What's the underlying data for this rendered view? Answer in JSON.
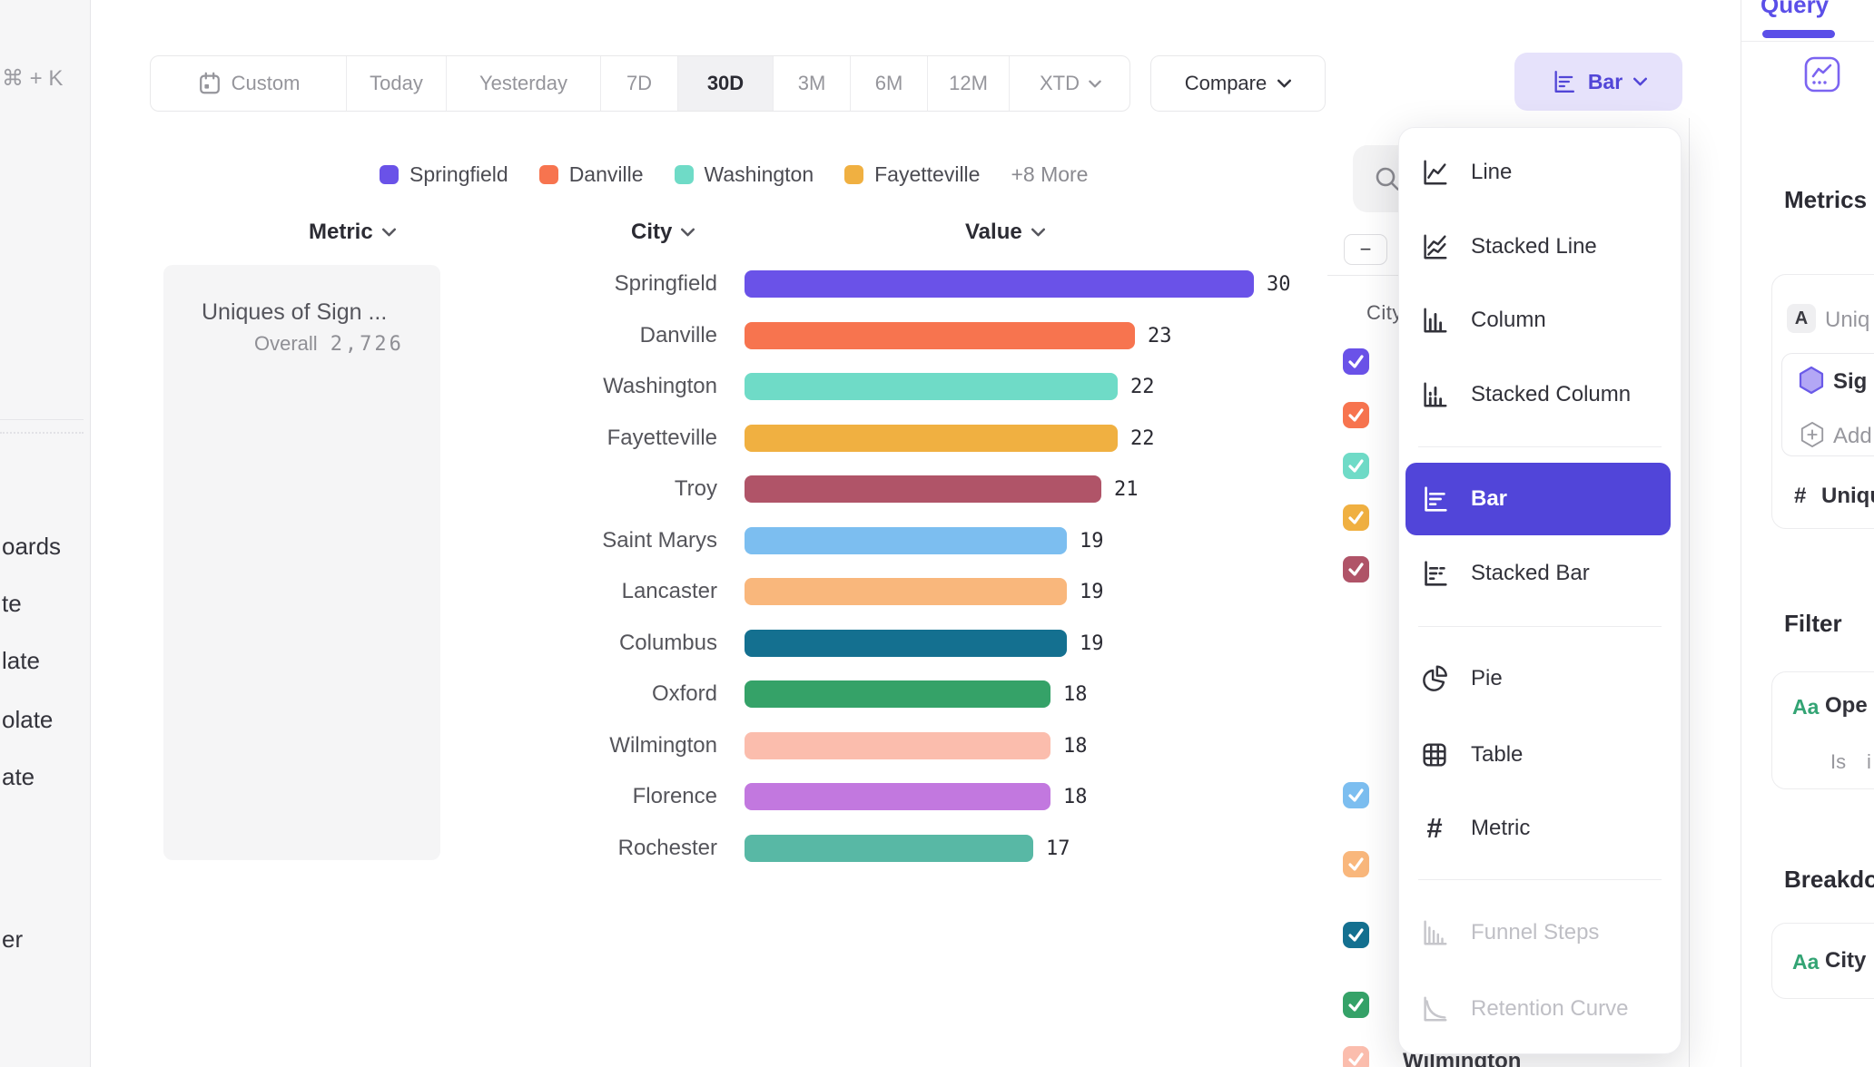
{
  "left_sidebar": {
    "shortcut": "⌘ + K",
    "items": [
      "oards",
      "te",
      "late",
      "olate",
      "ate",
      "er"
    ]
  },
  "toolbar": {
    "date_ranges": [
      {
        "label": "Custom"
      },
      {
        "label": "Today"
      },
      {
        "label": "Yesterday"
      },
      {
        "label": "7D"
      },
      {
        "label": "30D",
        "selected": true
      },
      {
        "label": "3M"
      },
      {
        "label": "6M"
      },
      {
        "label": "12M"
      },
      {
        "label": "XTD",
        "has_chevron": true
      }
    ],
    "compare_label": "Compare",
    "chart_type_button_label": "Bar"
  },
  "legend": {
    "items": [
      {
        "label": "Springfield",
        "color": "#6A52E8"
      },
      {
        "label": "Danville",
        "color": "#F7744F"
      },
      {
        "label": "Washington",
        "color": "#6FDBC7"
      },
      {
        "label": "Fayetteville",
        "color": "#F0B041"
      }
    ],
    "more_label": "+8 More"
  },
  "chart_data": {
    "type": "bar",
    "columns": {
      "metric": "Metric",
      "city": "City",
      "value": "Value"
    },
    "metric_card": {
      "title": "Uniques of Sign ...",
      "overall_label": "Overall",
      "overall_value": "2,726"
    },
    "xlim": [
      0,
      30
    ],
    "categories": [
      "Springfield",
      "Danville",
      "Washington",
      "Fayetteville",
      "Troy",
      "Saint Marys",
      "Lancaster",
      "Columbus",
      "Oxford",
      "Wilmington",
      "Florence",
      "Rochester"
    ],
    "values": [
      30,
      23,
      22,
      22,
      21,
      19,
      19,
      19,
      18,
      18,
      18,
      17
    ],
    "rows": [
      {
        "city": "Springfield",
        "value": 30,
        "color": "#6A52E8"
      },
      {
        "city": "Danville",
        "value": 23,
        "color": "#F7744F"
      },
      {
        "city": "Washington",
        "value": 22,
        "color": "#6FDBC7"
      },
      {
        "city": "Fayetteville",
        "value": 22,
        "color": "#F0B041"
      },
      {
        "city": "Troy",
        "value": 21,
        "color": "#B05468"
      },
      {
        "city": "Saint Marys",
        "value": 19,
        "color": "#7CBEF0"
      },
      {
        "city": "Lancaster",
        "value": 19,
        "color": "#F9B77C"
      },
      {
        "city": "Columbus",
        "value": 19,
        "color": "#147090"
      },
      {
        "city": "Oxford",
        "value": 18,
        "color": "#35A268"
      },
      {
        "city": "Wilmington",
        "value": 18,
        "color": "#FBBDAD"
      },
      {
        "city": "Florence",
        "value": 18,
        "color": "#C278DF"
      },
      {
        "city": "Rochester",
        "value": 17,
        "color": "#58B8A5"
      }
    ]
  },
  "filter_panel": {
    "collapse_label": "−",
    "city_label": "City",
    "checkbox_colors": [
      "#6A52E8",
      "#F7744F",
      "#6FDBC7",
      "#F0B041",
      "#B05468",
      "#7CBEF0",
      "#F9B77C",
      "#147090",
      "#35A268",
      "#FBBDAD"
    ],
    "partial_label": "Wilmington"
  },
  "chart_menu": {
    "items": [
      {
        "label": "Line"
      },
      {
        "label": "Stacked Line"
      },
      {
        "label": "Column"
      },
      {
        "label": "Stacked Column"
      },
      {
        "label": "Bar",
        "selected": true
      },
      {
        "label": "Stacked Bar"
      },
      {
        "label": "Pie"
      },
      {
        "label": "Table"
      },
      {
        "label": "Metric"
      },
      {
        "label": "Funnel Steps",
        "disabled": true
      },
      {
        "label": "Retention Curve",
        "disabled": true
      }
    ]
  },
  "right_sidebar": {
    "tab_label": "Query",
    "metrics": {
      "heading": "Metrics",
      "badge": "A",
      "metric_name": "Uniq",
      "event_name": "Sig",
      "add_label": "Add",
      "agg_prefix": "#",
      "agg_label": "Uniqu"
    },
    "filter": {
      "heading": "Filter",
      "type_icon": "Aa",
      "property": "Ope",
      "operator": "Is",
      "value": "i"
    },
    "breakdown": {
      "heading": "Breakdo",
      "type_icon": "Aa",
      "property": "City"
    }
  },
  "colors": {
    "accent_purple": "#5145D9",
    "accent_light": "#E6E2FB",
    "selected_range_bg": "#F1F1F3",
    "green_type_icon": "#33A474"
  }
}
